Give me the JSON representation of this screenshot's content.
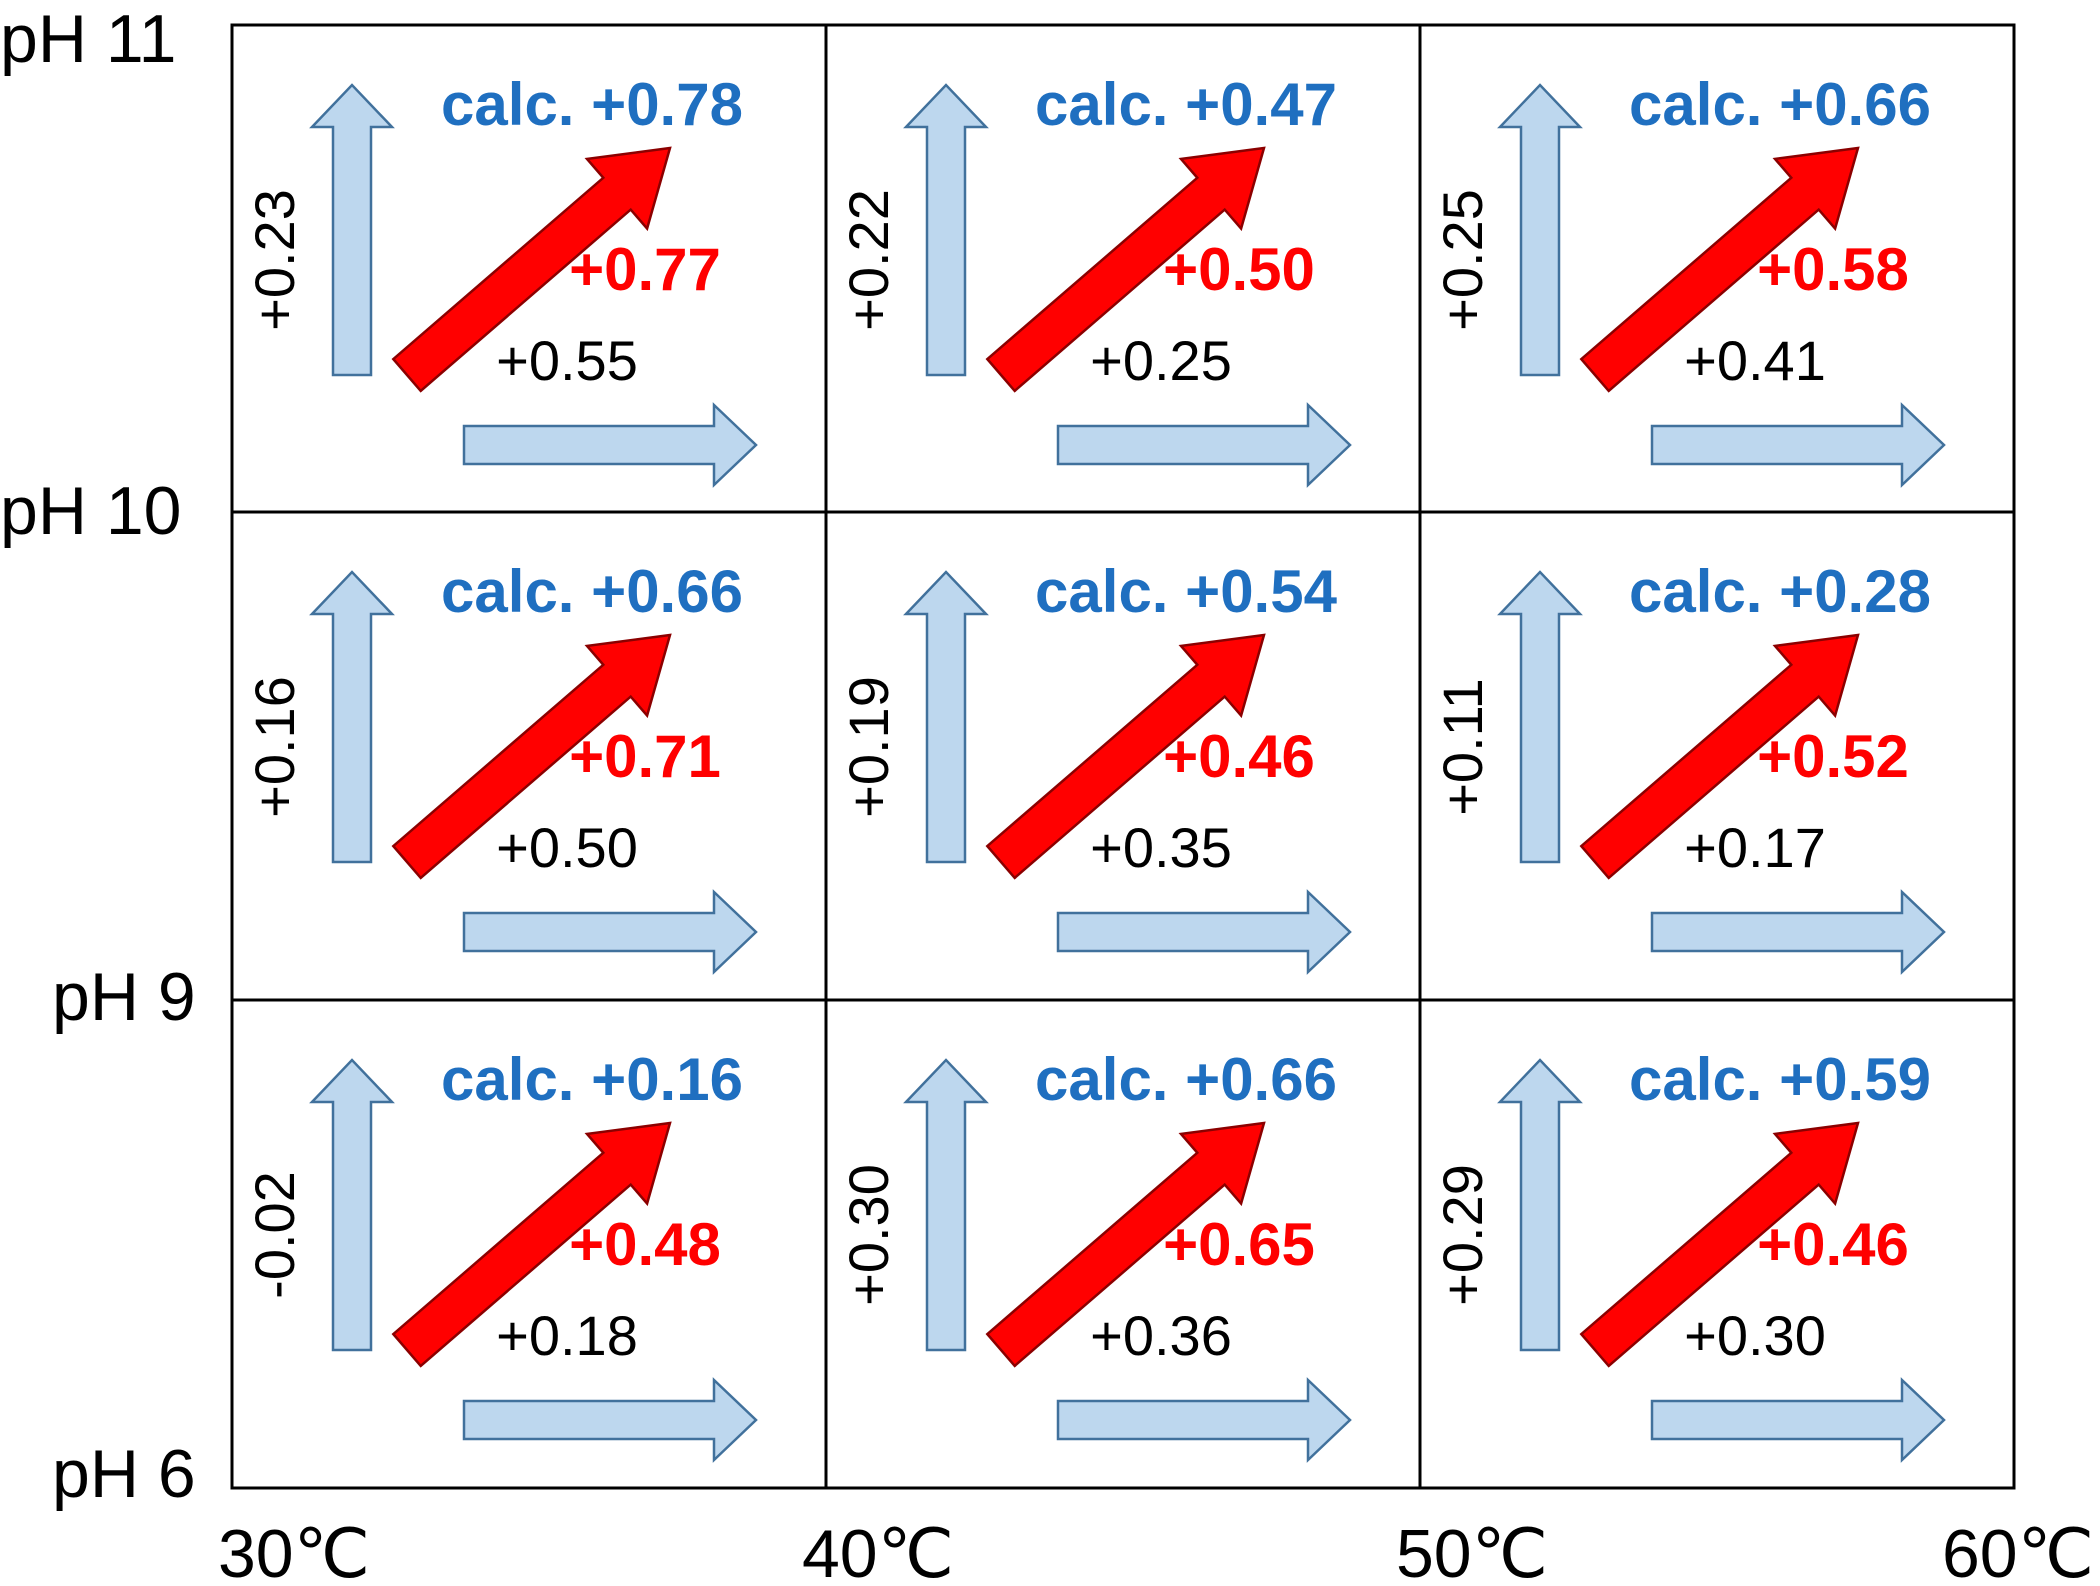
{
  "colors": {
    "calc": "#1f6fc0",
    "diagonal_fill": "#ff0000",
    "diagonal_stroke": "#8b0000",
    "component_fill": "#bdd7ee",
    "component_stroke": "#41719c",
    "grid": "#000000"
  },
  "row_labels": [
    "pH 11",
    "pH 10",
    "pH 9",
    "pH 6"
  ],
  "col_labels": [
    "30℃",
    "40℃",
    "50℃",
    "60℃"
  ],
  "cells": [
    [
      {
        "calc": "calc. +0.78",
        "diag": "+0.77",
        "h": "+0.55",
        "v": "+0.23"
      },
      {
        "calc": "calc. +0.47",
        "diag": "+0.50",
        "h": "+0.25",
        "v": "+0.22"
      },
      {
        "calc": "calc. +0.66",
        "diag": "+0.58",
        "h": "+0.41",
        "v": "+0.25"
      }
    ],
    [
      {
        "calc": "calc. +0.66",
        "diag": "+0.71",
        "h": "+0.50",
        "v": "+0.16"
      },
      {
        "calc": "calc. +0.54",
        "diag": "+0.46",
        "h": "+0.35",
        "v": "+0.19"
      },
      {
        "calc": "calc. +0.28",
        "diag": "+0.52",
        "h": "+0.17",
        "v": "+0.11"
      }
    ],
    [
      {
        "calc": "calc. +0.16",
        "diag": "+0.48",
        "h": "+0.18",
        "v": "-0.02"
      },
      {
        "calc": "calc. +0.66",
        "diag": "+0.65",
        "h": "+0.36",
        "v": "+0.30"
      },
      {
        "calc": "calc. +0.59",
        "diag": "+0.46",
        "h": "+0.30",
        "v": "+0.29"
      }
    ]
  ]
}
